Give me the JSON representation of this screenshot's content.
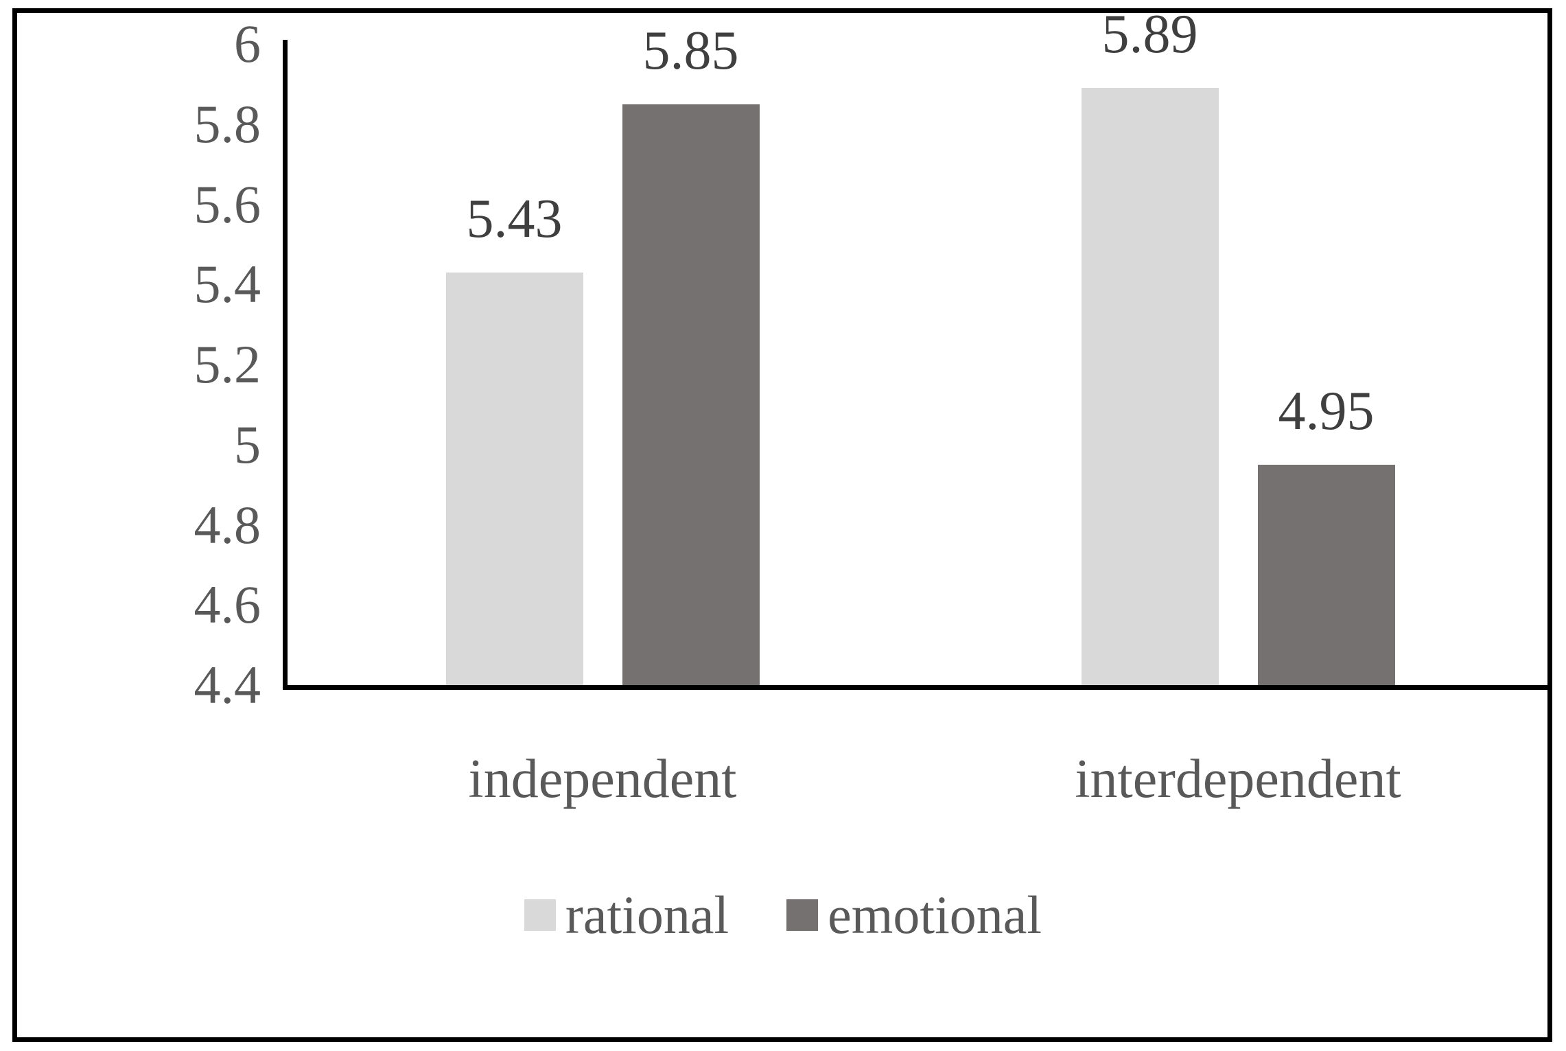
{
  "chart_data": {
    "type": "bar",
    "title": "",
    "xlabel": "",
    "ylabel": "",
    "categories": [
      "independent",
      "interdependent"
    ],
    "series": [
      {
        "name": "rational",
        "color": "#d9d9d9",
        "values": [
          5.43,
          5.89
        ],
        "labels": [
          "5.43",
          "5.89"
        ]
      },
      {
        "name": "emotional",
        "color": "#767171",
        "values": [
          5.85,
          4.95
        ],
        "labels": [
          "5.85",
          "4.95"
        ]
      }
    ],
    "ylim": [
      4.4,
      6
    ],
    "ytick_labels": [
      "6",
      "5.8",
      "5.6",
      "5.4",
      "5.2",
      "5",
      "4.8",
      "4.6",
      "4.4"
    ],
    "ytick_values": [
      6,
      5.8,
      5.6,
      5.4,
      5.2,
      5,
      4.8,
      4.6,
      4.4
    ],
    "grid": false,
    "legend_position": "bottom",
    "axis_color": "#000000",
    "tick_color": "#595959",
    "value_label_color": "#3f3f3f"
  }
}
